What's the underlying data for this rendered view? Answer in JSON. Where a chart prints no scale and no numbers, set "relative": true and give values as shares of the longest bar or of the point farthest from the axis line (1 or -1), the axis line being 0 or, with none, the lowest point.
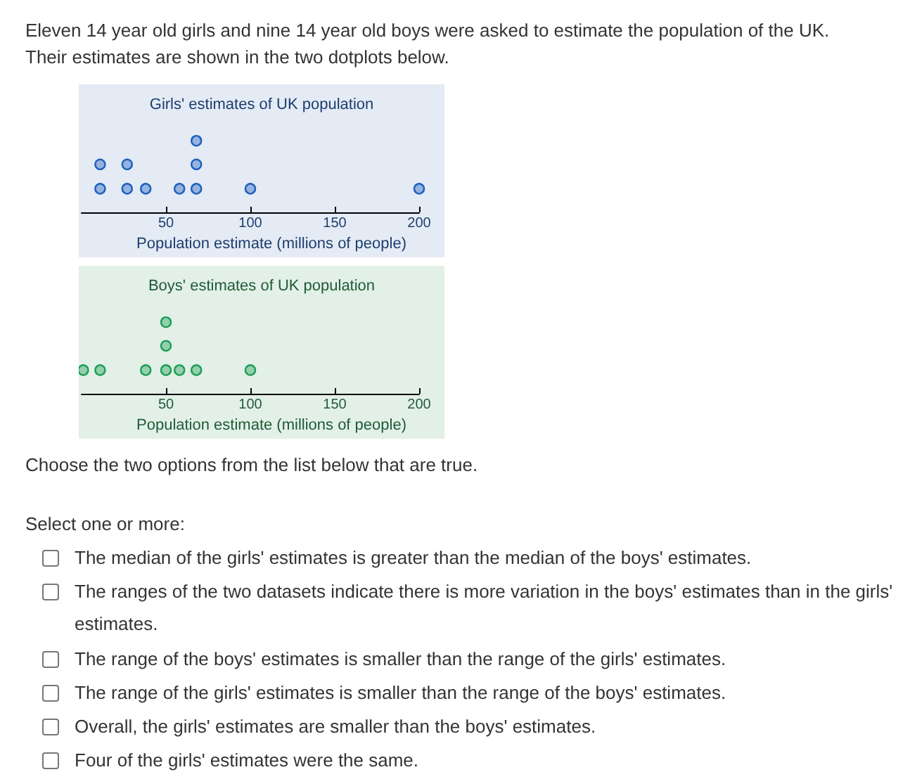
{
  "chart_data": [
    {
      "type": "other",
      "annotations": [
        "Eleven 14 year old girls and nine 14 year old boys were asked to estimate the population of the UK.",
        "Their estimates are shown in the two dotplots below."
      ]
    },
    {
      "type": "scatter",
      "title": "Girls' estimates of UK population",
      "xlabel": "Population estimate (millions of people)",
      "relative": true,
      "tick_labels": "x",
      "marker": "circle",
      "color": "#1f5fbf",
      "xlim": [
        0,
        200
      ],
      "xticks": [
        50,
        100,
        150,
        200
      ],
      "x": [
        11,
        11,
        27,
        27,
        38,
        58,
        68,
        68,
        68,
        100,
        200
      ],
      "values": [
        0.33,
        0.67,
        0.33,
        0.67,
        0.33,
        0.33,
        0.33,
        0.67,
        1,
        0.33,
        0.33
      ]
    },
    {
      "type": "scatter",
      "title": "Boys' estimates of UK population",
      "xlabel": "Population estimate (millions of people)",
      "relative": true,
      "tick_labels": "x",
      "marker": "circle",
      "color": "#1e9e57",
      "xlim": [
        0,
        200
      ],
      "xticks": [
        50,
        100,
        150,
        200
      ],
      "x": [
        1,
        11,
        38,
        50,
        50,
        50,
        58,
        68,
        100
      ],
      "values": [
        0.33,
        0.33,
        0.33,
        0.33,
        0.67,
        1,
        0.33,
        0.33,
        0.33
      ]
    },
    {
      "type": "other",
      "title": "Choose the two options from the list below that are true.",
      "subtitle": "Select one or more:",
      "annotations": [
        "The median of the girls' estimates is greater than the median of the boys' estimates.",
        "The ranges of the two datasets indicate there is more variation in the boys' estimates than in the girls' estimates.",
        "The range of the boys' estimates is smaller than the range of the girls' estimates.",
        "The range of the girls' estimates is smaller than the range of the boys' estimates.",
        "Overall, the girls' estimates are smaller than the boys' estimates.",
        "Four of the girls' estimates were the same."
      ]
    }
  ]
}
